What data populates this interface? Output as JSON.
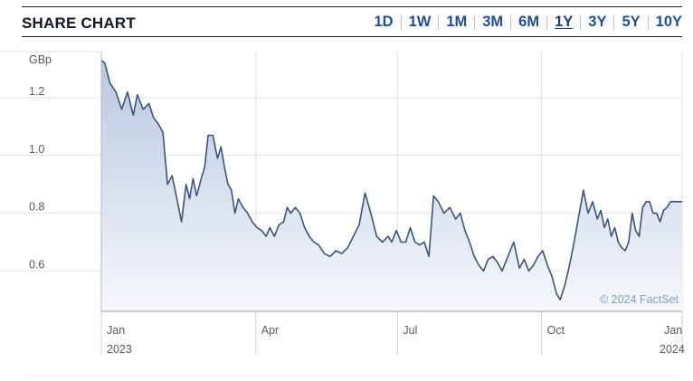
{
  "header": {
    "title": "SHARE CHART",
    "ranges": [
      "1D",
      "1W",
      "1M",
      "3M",
      "6M",
      "1Y",
      "3Y",
      "5Y",
      "10Y"
    ],
    "active_range": "1Y"
  },
  "colors": {
    "accent": "#1f4e96",
    "line": "#3a5579",
    "fill_top": "#b8c8e0",
    "fill_bottom": "#f6f8fc",
    "grid": "#e2e2e2"
  },
  "chart_data": {
    "type": "area",
    "unit_label": "GBp",
    "y_ticks": [
      "1.2",
      "1.0",
      "0.8",
      "0.6"
    ],
    "ylim": [
      0.46,
      1.36
    ],
    "x_ticks": [
      {
        "label": "Jan",
        "year": "2023"
      },
      {
        "label": "Apr",
        "year": ""
      },
      {
        "label": "Jul",
        "year": ""
      },
      {
        "label": "Oct",
        "year": ""
      },
      {
        "label": "Jan",
        "year": "2024"
      }
    ],
    "credit": "© 2024 FactSet",
    "grid": true,
    "series": [
      {
        "x": [
          0,
          0.006,
          0.015,
          0.025,
          0.035,
          0.045,
          0.055,
          0.062,
          0.072,
          0.082,
          0.09,
          0.098,
          0.106,
          0.114,
          0.122,
          0.13,
          0.138,
          0.146,
          0.152,
          0.158,
          0.164,
          0.172,
          0.178,
          0.184,
          0.192,
          0.2,
          0.206,
          0.212,
          0.218,
          0.224,
          0.23,
          0.236,
          0.244,
          0.252,
          0.26,
          0.268,
          0.276,
          0.284,
          0.29,
          0.298,
          0.306,
          0.314,
          0.32,
          0.326,
          0.334,
          0.342,
          0.35,
          0.358,
          0.366,
          0.374,
          0.384,
          0.394,
          0.404,
          0.414,
          0.424,
          0.434,
          0.444,
          0.454,
          0.464,
          0.474,
          0.484,
          0.494,
          0.5,
          0.508,
          0.516,
          0.524,
          0.532,
          0.54,
          0.548,
          0.556,
          0.564,
          0.572,
          0.58,
          0.59,
          0.6,
          0.61,
          0.618,
          0.626,
          0.634,
          0.642,
          0.65,
          0.658,
          0.666,
          0.674,
          0.682,
          0.69,
          0.7,
          0.71,
          0.72,
          0.728,
          0.736,
          0.744,
          0.752,
          0.76,
          0.768,
          0.776,
          0.784,
          0.79,
          0.798,
          0.806,
          0.814,
          0.822,
          0.83,
          0.838,
          0.846,
          0.854,
          0.86,
          0.866,
          0.872,
          0.878,
          0.884,
          0.89,
          0.896,
          0.902,
          0.908,
          0.914,
          0.92,
          0.926,
          0.932,
          0.938,
          0.944,
          0.95,
          0.956,
          0.962,
          0.968,
          0.974,
          0.98,
          0.986,
          0.992,
          1.0
        ],
        "y": [
          1.33,
          1.32,
          1.25,
          1.22,
          1.16,
          1.22,
          1.14,
          1.21,
          1.16,
          1.18,
          1.13,
          1.11,
          1.08,
          0.9,
          0.93,
          0.85,
          0.77,
          0.9,
          0.85,
          0.92,
          0.86,
          0.92,
          0.96,
          1.07,
          1.07,
          0.99,
          1.03,
          0.96,
          0.9,
          0.88,
          0.8,
          0.85,
          0.82,
          0.8,
          0.77,
          0.75,
          0.74,
          0.72,
          0.75,
          0.72,
          0.76,
          0.77,
          0.82,
          0.8,
          0.82,
          0.8,
          0.75,
          0.72,
          0.7,
          0.69,
          0.66,
          0.65,
          0.67,
          0.66,
          0.68,
          0.72,
          0.76,
          0.87,
          0.8,
          0.72,
          0.7,
          0.72,
          0.7,
          0.74,
          0.7,
          0.7,
          0.75,
          0.7,
          0.69,
          0.7,
          0.65,
          0.86,
          0.84,
          0.8,
          0.82,
          0.78,
          0.8,
          0.74,
          0.7,
          0.65,
          0.62,
          0.6,
          0.64,
          0.65,
          0.63,
          0.6,
          0.65,
          0.7,
          0.61,
          0.64,
          0.6,
          0.62,
          0.65,
          0.67,
          0.62,
          0.58,
          0.52,
          0.5,
          0.55,
          0.62,
          0.7,
          0.79,
          0.88,
          0.8,
          0.84,
          0.78,
          0.81,
          0.75,
          0.78,
          0.72,
          0.75,
          0.7,
          0.68,
          0.67,
          0.7,
          0.8,
          0.74,
          0.72,
          0.82,
          0.84,
          0.84,
          0.8,
          0.8,
          0.77,
          0.81,
          0.82,
          0.84,
          0.84,
          0.84,
          0.84
        ]
      }
    ]
  }
}
